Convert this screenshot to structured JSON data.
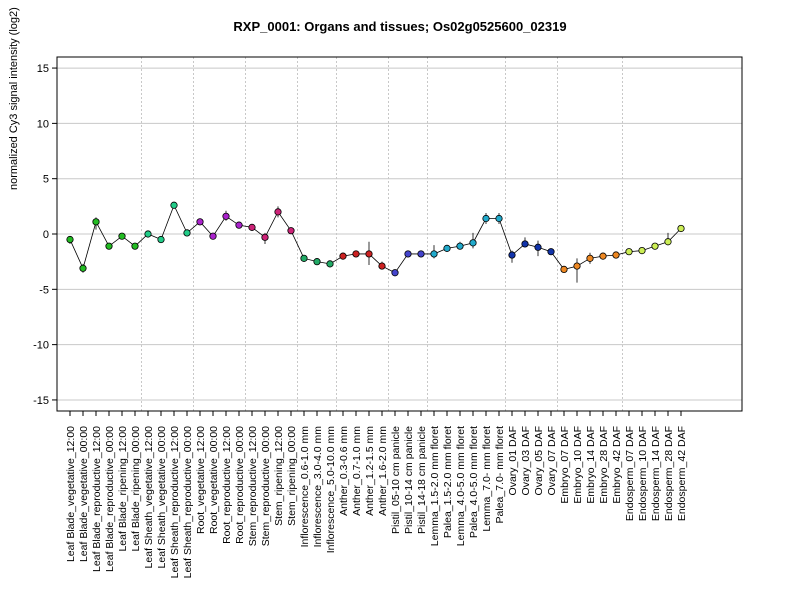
{
  "chart_data": {
    "type": "line",
    "title": "RXP_0001: Organs and tissues; Os02g0525600_02319",
    "xlabel": "",
    "ylabel": "normalized Cy3 signal intensity (log2)",
    "ylim": [
      -16,
      16
    ],
    "yticks": [
      -15,
      -10,
      -5,
      0,
      5,
      10,
      15
    ],
    "grid": true,
    "categories": [
      "Leaf Blade_vegetative_12:00",
      "Leaf Blade_vegetative_00:00",
      "Leaf Blade_reproductive_12:00",
      "Leaf Blade_reproductive_00:00",
      "Leaf Blade_ripening_12:00",
      "Leaf Blade_ripening_00:00",
      "Leaf Sheath_vegetative_12:00",
      "Leaf Sheath_vegetative_00:00",
      "Leaf Sheath_reproductive_12:00",
      "Leaf Sheath_reproductive_00:00",
      "Root_vegetative_12:00",
      "Root_vegetative_00:00",
      "Root_reproductive_12:00",
      "Root_reproductive_00:00",
      "Stem_reproductive_12:00",
      "Stem_reproductive_00:00",
      "Stem_ripening_12:00",
      "Stem_ripening_00:00",
      "Inflorescence_0.6-1.0 mm",
      "Inflorescence_3.0-4.0 mm",
      "Inflorescence_5.0-10.0 mm",
      "Anther_0.3-0.6 mm",
      "Anther_0.7-1.0 mm",
      "Anther_1.2-1.5 mm",
      "Anther_1.6-2.0 mm",
      "Pistil_05-10 cm panicle",
      "Pistil_10-14 cm panicle",
      "Pistil_14-18 cm panicle",
      "Lemma_1.5-2.0 mm floret",
      "Palea_1.5-2.0 mm floret",
      "Lemma_4.0-5.0 mm floret",
      "Palea_4.0-5.0 mm floret",
      "Lemma_7.0- mm floret",
      "Palea_7.0- mm floret",
      "Ovary_01 DAF",
      "Ovary_03 DAF",
      "Ovary_05 DAF",
      "Ovary_07 DAF",
      "Embryo_07 DAF",
      "Embryo_10 DAF",
      "Embryo_14 DAF",
      "Embryo_28 DAF",
      "Embryo_42 DAF",
      "Endosperm_07 DAF",
      "Endosperm_10 DAF",
      "Endosperm_14 DAF",
      "Endosperm_28 DAF",
      "Endosperm_42 DAF"
    ],
    "values": [
      -0.5,
      -3.1,
      1.1,
      -1.1,
      -0.2,
      -1.1,
      0.0,
      -0.5,
      2.6,
      0.1,
      1.1,
      -0.2,
      1.6,
      0.8,
      0.6,
      -0.3,
      2.0,
      0.3,
      -2.2,
      -2.5,
      -2.7,
      -2.0,
      -1.8,
      -1.8,
      -2.9,
      -3.5,
      -1.8,
      -1.8,
      -1.8,
      -1.3,
      -1.1,
      -0.8,
      1.4,
      1.4,
      -1.9,
      -0.9,
      -1.2,
      -1.6,
      -3.2,
      -2.9,
      -2.2,
      -2.0,
      -1.9,
      -1.6,
      -1.5,
      -1.1,
      -0.7,
      0.5
    ],
    "error_low": [
      -0.9,
      -3.5,
      0.4,
      -1.4,
      -0.4,
      -1.3,
      -0.2,
      -0.8,
      2.3,
      -0.2,
      0.8,
      -0.4,
      1.2,
      0.5,
      0.3,
      -0.9,
      1.5,
      0.0,
      -2.4,
      -2.7,
      -2.9,
      -2.2,
      -2.0,
      -2.8,
      -3.2,
      -3.8,
      -2.0,
      -2.0,
      -2.2,
      -1.6,
      -1.4,
      -1.3,
      0.9,
      0.9,
      -2.6,
      -1.2,
      -2.0,
      -1.9,
      -3.4,
      -4.4,
      -2.7,
      -2.2,
      -2.1,
      -1.8,
      -1.7,
      -1.3,
      -1.0,
      0.3
    ],
    "error_high": [
      -0.2,
      -2.7,
      1.5,
      -0.8,
      0.0,
      -0.9,
      0.2,
      -0.2,
      2.9,
      0.4,
      1.4,
      0.0,
      2.1,
      1.1,
      0.9,
      0.1,
      2.5,
      0.6,
      -2.0,
      -2.3,
      -2.5,
      -1.8,
      -1.6,
      -0.7,
      -2.5,
      -3.2,
      -1.6,
      -1.6,
      -1.0,
      -1.0,
      -0.7,
      0.1,
      1.9,
      1.9,
      -1.5,
      -0.3,
      -0.6,
      -1.3,
      -3.0,
      -2.2,
      -1.7,
      -1.8,
      -1.7,
      -1.4,
      -1.3,
      -0.9,
      0.1,
      0.7
    ],
    "point_colors": [
      "#22bb22",
      "#22bb22",
      "#22bb22",
      "#22bb22",
      "#22bb22",
      "#22bb22",
      "#22cc88",
      "#22cc88",
      "#22cc88",
      "#22cc88",
      "#aa22cc",
      "#aa22cc",
      "#aa22cc",
      "#aa22cc",
      "#cc2277",
      "#cc2277",
      "#cc2277",
      "#cc2277",
      "#22aa66",
      "#22aa66",
      "#22aa66",
      "#cc2222",
      "#cc2222",
      "#cc2222",
      "#cc2222",
      "#4444cc",
      "#4444cc",
      "#4444cc",
      "#22aacc",
      "#22aacc",
      "#22aacc",
      "#22aacc",
      "#22aacc",
      "#22aacc",
      "#1133aa",
      "#1133aa",
      "#1133aa",
      "#1133aa",
      "#ee8822",
      "#ee8822",
      "#ee8822",
      "#ee8822",
      "#ee8822",
      "#ccee55",
      "#ccee55",
      "#ccee55",
      "#ccee55",
      "#ccee55"
    ],
    "group_dividers_after": [
      5,
      9,
      13,
      17,
      20,
      24,
      27,
      33,
      37,
      42
    ]
  }
}
